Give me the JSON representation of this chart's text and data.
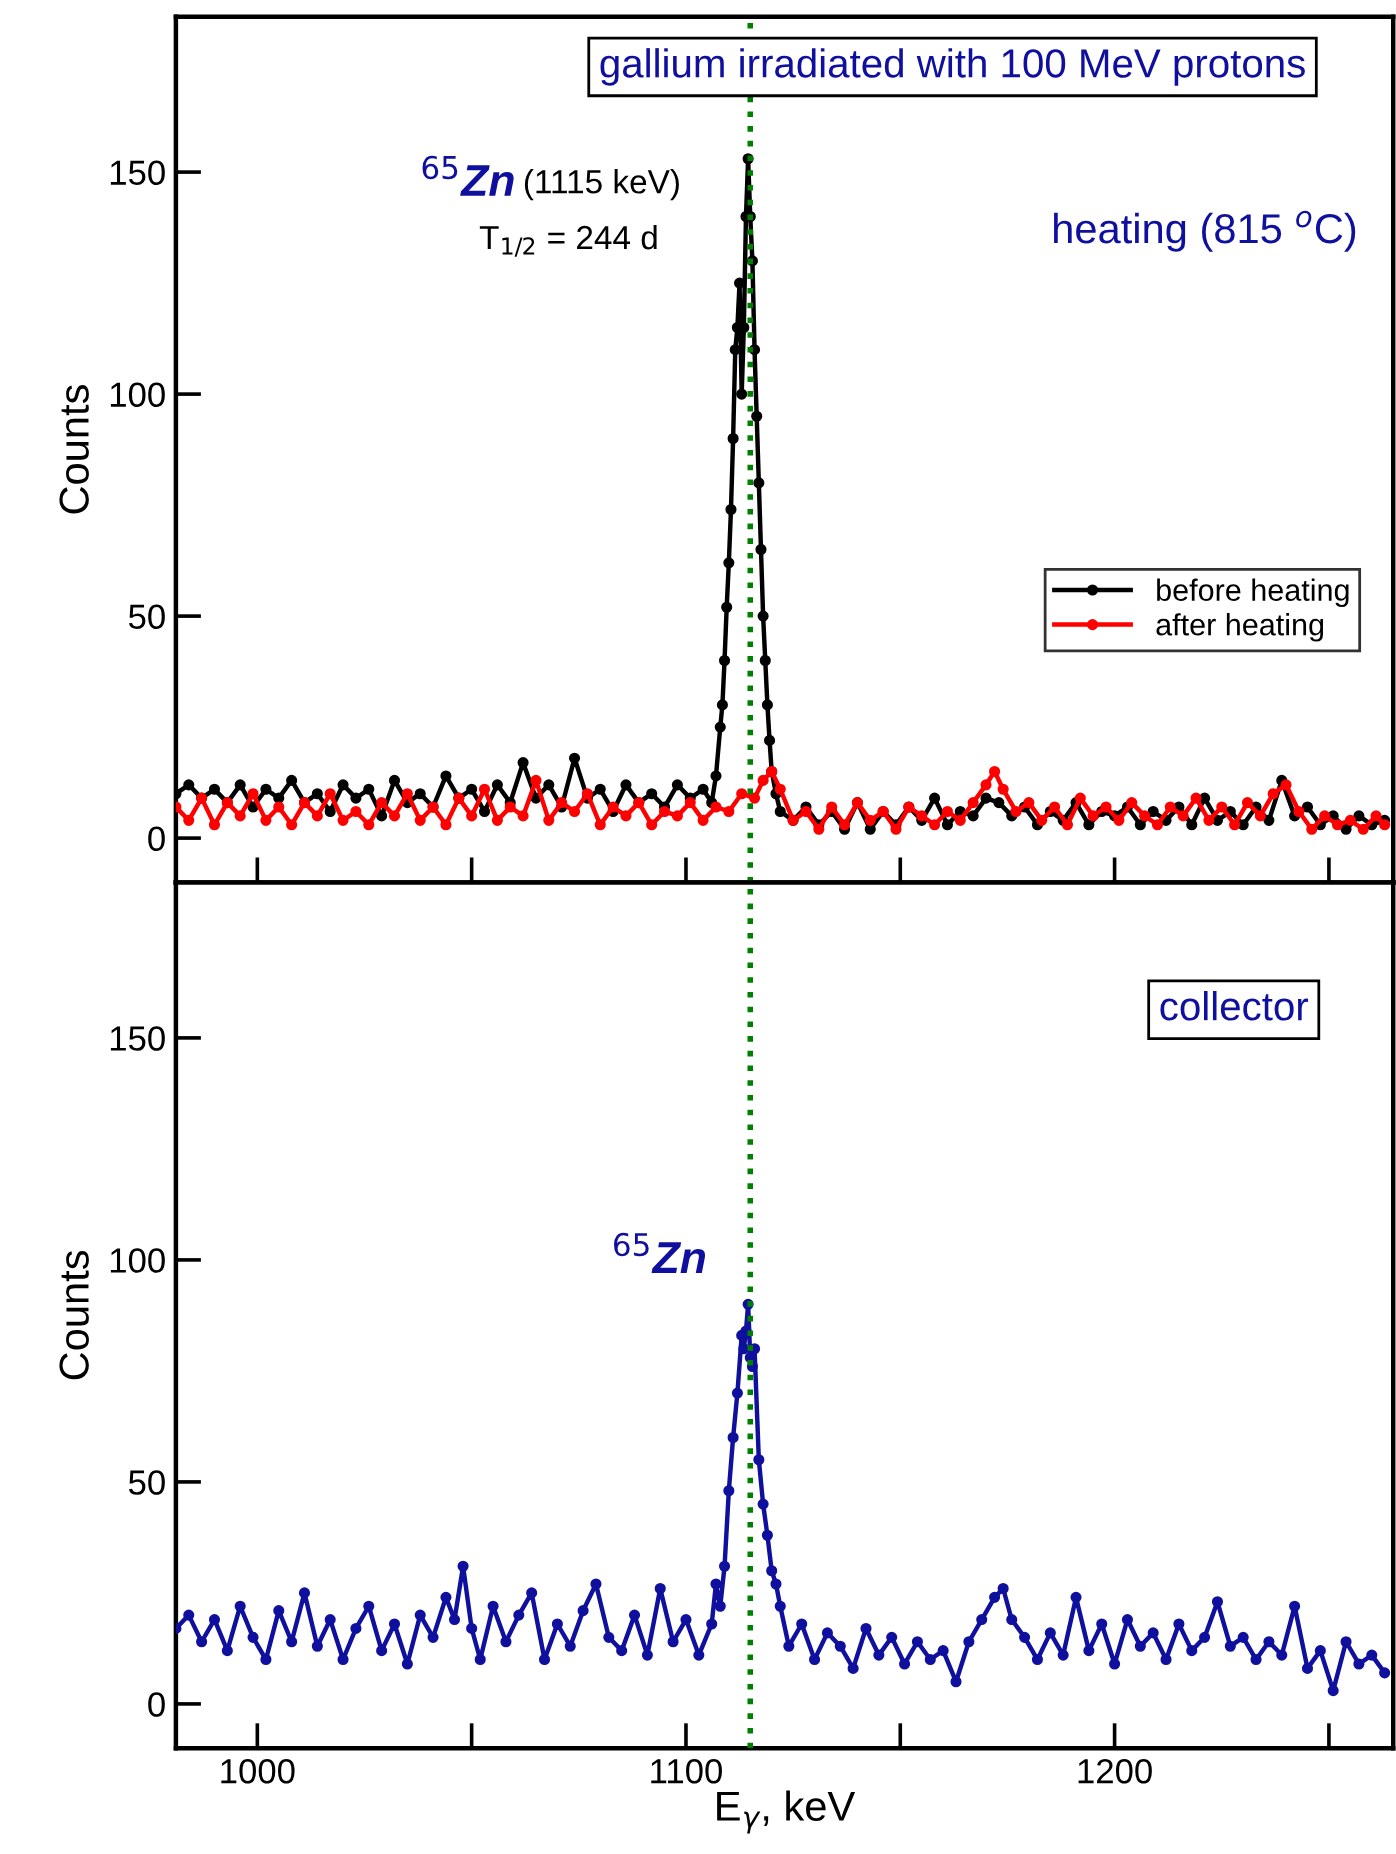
{
  "chart_data": [
    {
      "type": "line",
      "ylabel": "Counts",
      "xlim": [
        981,
        1265
      ],
      "ylim": [
        -10,
        185
      ],
      "xticks": [
        1000,
        {
          "value": 1050,
          "label": null
        },
        1100,
        {
          "value": 1150,
          "label": null
        },
        1200,
        {
          "value": 1250,
          "label": null
        }
      ],
      "yticks": [
        0,
        50,
        100,
        150
      ],
      "tick_labels": "y",
      "grid": false,
      "legend": "right",
      "marker": "circle",
      "line_style": "solid",
      "annotations": [
        "gallium irradiated with 100 MeV protons",
        "$^{65}$Zn",
        "(1115 keV)",
        "T$_{1/2}$ = 244 d",
        "heating (815 $^{o}$C)"
      ],
      "ref_lines": [
        {
          "axis": "x",
          "value": 1115,
          "color": "#008000",
          "line_style": "dotted"
        }
      ],
      "series": [
        {
          "name": "before heating",
          "color": "#000000",
          "x": [
            981,
            984,
            987,
            990,
            993,
            996,
            999,
            1002,
            1005,
            1008,
            1011,
            1014,
            1017,
            1020,
            1023,
            1026,
            1029,
            1032,
            1035,
            1038,
            1041,
            1044,
            1047,
            1050,
            1053,
            1056,
            1059,
            1062,
            1065,
            1068,
            1071,
            1074,
            1077,
            1080,
            1083,
            1086,
            1089,
            1092,
            1095,
            1098,
            1101,
            1104,
            1106,
            1107,
            1108,
            1108.5,
            1109,
            1109.5,
            1110,
            1110.5,
            1111,
            1111.5,
            1112,
            1112.5,
            1113,
            1113.5,
            1114,
            1114.5,
            1115,
            1115.5,
            1116,
            1116.5,
            1117,
            1117.5,
            1118,
            1118.5,
            1119,
            1119.5,
            1120,
            1121,
            1122,
            1125,
            1128,
            1131,
            1134,
            1137,
            1140,
            1143,
            1146,
            1149,
            1152,
            1155,
            1158,
            1161,
            1164,
            1167,
            1170,
            1173,
            1176,
            1179,
            1182,
            1185,
            1188,
            1191,
            1194,
            1197,
            1200,
            1203,
            1206,
            1209,
            1212,
            1215,
            1218,
            1221,
            1224,
            1227,
            1230,
            1233,
            1236,
            1239,
            1242,
            1245,
            1248,
            1251,
            1254,
            1257,
            1260,
            1263
          ],
          "values": [
            10,
            12,
            9,
            11,
            8,
            12,
            7,
            11,
            9,
            13,
            8,
            10,
            6,
            12,
            9,
            11,
            5,
            13,
            8,
            10,
            7,
            14,
            9,
            11,
            6,
            12,
            8,
            17,
            9,
            12,
            7,
            18,
            9,
            11,
            6,
            12,
            8,
            10,
            7,
            12,
            9,
            11,
            8,
            14,
            25,
            30,
            40,
            52,
            62,
            74,
            90,
            110,
            115,
            125,
            100,
            115,
            140,
            153,
            140,
            130,
            110,
            95,
            80,
            65,
            50,
            40,
            30,
            22,
            15,
            10,
            6,
            4,
            7,
            3,
            6,
            2,
            8,
            2,
            6,
            3,
            7,
            4,
            9,
            3,
            6,
            5,
            9,
            8,
            5,
            7,
            3,
            6,
            4,
            8,
            3,
            6,
            5,
            7,
            3,
            6,
            4,
            7,
            3,
            9,
            4,
            6,
            3,
            7,
            4,
            13,
            5,
            7,
            3,
            5,
            2,
            5,
            3,
            4
          ]
        },
        {
          "name": "after heating",
          "color": "#ff0000",
          "x": [
            981,
            984,
            987,
            990,
            993,
            996,
            999,
            1002,
            1005,
            1008,
            1011,
            1014,
            1017,
            1020,
            1023,
            1026,
            1029,
            1032,
            1035,
            1038,
            1041,
            1044,
            1047,
            1050,
            1053,
            1056,
            1059,
            1062,
            1065,
            1068,
            1071,
            1074,
            1077,
            1080,
            1083,
            1086,
            1089,
            1092,
            1095,
            1098,
            1101,
            1104,
            1107,
            1110,
            1113,
            1116,
            1118,
            1120,
            1122,
            1125,
            1128,
            1131,
            1134,
            1137,
            1140,
            1143,
            1146,
            1149,
            1152,
            1155,
            1158,
            1161,
            1164,
            1167,
            1170,
            1172,
            1174,
            1177,
            1180,
            1183,
            1186,
            1189,
            1192,
            1195,
            1198,
            1201,
            1204,
            1207,
            1210,
            1213,
            1216,
            1219,
            1222,
            1225,
            1228,
            1231,
            1234,
            1237,
            1240,
            1243,
            1246,
            1249,
            1252,
            1255,
            1258,
            1261,
            1263
          ],
          "values": [
            7,
            4,
            9,
            3,
            8,
            5,
            10,
            4,
            7,
            3,
            8,
            5,
            10,
            4,
            6,
            3,
            8,
            5,
            10,
            4,
            7,
            3,
            9,
            5,
            11,
            4,
            7,
            5,
            13,
            4,
            8,
            6,
            10,
            3,
            7,
            5,
            8,
            3,
            6,
            5,
            8,
            4,
            7,
            6,
            10,
            9,
            13,
            15,
            11,
            4,
            6,
            2,
            7,
            3,
            8,
            4,
            6,
            2,
            7,
            5,
            3,
            6,
            4,
            8,
            12,
            15,
            11,
            6,
            8,
            4,
            7,
            3,
            9,
            5,
            7,
            4,
            8,
            5,
            3,
            7,
            5,
            9,
            4,
            7,
            3,
            8,
            5,
            10,
            12,
            6,
            2,
            5,
            3,
            4,
            2,
            5,
            3
          ]
        }
      ]
    },
    {
      "type": "line",
      "xlabel": "E$_{γ}$, keV",
      "ylabel": "Counts",
      "xlim": [
        981,
        1265
      ],
      "ylim": [
        -10,
        185
      ],
      "xticks": [
        1000,
        {
          "value": 1050,
          "label": null
        },
        1100,
        {
          "value": 1150,
          "label": null
        },
        1200,
        {
          "value": 1250,
          "label": null
        }
      ],
      "yticks": [
        0,
        50,
        100,
        150
      ],
      "grid": false,
      "marker": "circle",
      "line_style": "solid",
      "annotations": [
        "collector",
        "$^{65}$Zn"
      ],
      "ref_lines": [
        {
          "axis": "x",
          "value": 1115,
          "color": "#008000",
          "line_style": "dotted"
        }
      ],
      "series": [
        {
          "color": "#10109e",
          "x": [
            981,
            984,
            987,
            990,
            993,
            996,
            999,
            1002,
            1005,
            1008,
            1011,
            1014,
            1017,
            1020,
            1023,
            1026,
            1029,
            1032,
            1035,
            1038,
            1041,
            1044,
            1046,
            1048,
            1050,
            1052,
            1055,
            1058,
            1061,
            1064,
            1067,
            1070,
            1073,
            1076,
            1079,
            1082,
            1085,
            1088,
            1091,
            1094,
            1097,
            1100,
            1103,
            1106,
            1107,
            1108,
            1109,
            1110,
            1111,
            1112,
            1113,
            1113.5,
            1114,
            1114.5,
            1115,
            1115.5,
            1116,
            1117,
            1118,
            1119,
            1120,
            1121,
            1122,
            1124,
            1127,
            1130,
            1133,
            1136,
            1139,
            1142,
            1145,
            1148,
            1151,
            1154,
            1157,
            1160,
            1163,
            1166,
            1169,
            1172,
            1174,
            1176,
            1179,
            1182,
            1185,
            1188,
            1191,
            1194,
            1197,
            1200,
            1203,
            1206,
            1209,
            1212,
            1215,
            1218,
            1221,
            1224,
            1227,
            1230,
            1233,
            1236,
            1239,
            1242,
            1245,
            1248,
            1251,
            1254,
            1257,
            1260,
            1263
          ],
          "values": [
            17,
            20,
            14,
            19,
            12,
            22,
            15,
            10,
            21,
            14,
            25,
            13,
            19,
            10,
            17,
            22,
            12,
            18,
            9,
            20,
            15,
            24,
            19,
            31,
            17,
            10,
            22,
            14,
            20,
            25,
            10,
            18,
            13,
            21,
            27,
            15,
            12,
            20,
            11,
            26,
            14,
            19,
            11,
            18,
            27,
            22,
            31,
            48,
            60,
            70,
            83,
            80,
            84,
            90,
            78,
            76,
            80,
            55,
            45,
            38,
            30,
            27,
            22,
            13,
            18,
            10,
            16,
            13,
            8,
            17,
            11,
            15,
            9,
            14,
            10,
            12,
            5,
            14,
            19,
            24,
            26,
            19,
            15,
            10,
            16,
            11,
            24,
            12,
            18,
            9,
            19,
            13,
            16,
            10,
            18,
            12,
            15,
            23,
            13,
            15,
            10,
            14,
            11,
            22,
            8,
            12,
            3,
            14,
            9,
            11,
            7
          ]
        }
      ]
    }
  ]
}
